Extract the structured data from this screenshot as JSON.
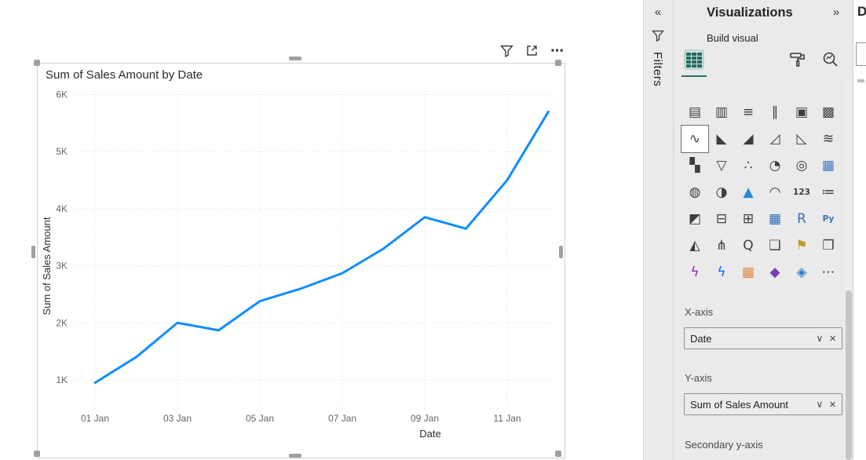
{
  "chart_data": {
    "type": "line",
    "title": "Sum of Sales Amount by Date",
    "xlabel": "Date",
    "ylabel": "Sum of Sales Amount",
    "x": [
      "01 Jan",
      "02 Jan",
      "03 Jan",
      "04 Jan",
      "05 Jan",
      "06 Jan",
      "07 Jan",
      "08 Jan",
      "09 Jan",
      "10 Jan",
      "11 Jan",
      "12 Jan"
    ],
    "values": [
      950,
      1400,
      2000,
      1870,
      2380,
      2600,
      2870,
      3300,
      3850,
      3650,
      4500,
      5700
    ],
    "x_ticks": [
      {
        "index": 0,
        "label": "01 Jan"
      },
      {
        "index": 2,
        "label": "03 Jan"
      },
      {
        "index": 4,
        "label": "05 Jan"
      },
      {
        "index": 6,
        "label": "07 Jan"
      },
      {
        "index": 8,
        "label": "09 Jan"
      },
      {
        "index": 10,
        "label": "11 Jan"
      }
    ],
    "y_ticks": [
      {
        "value": 1000,
        "label": "1K"
      },
      {
        "value": 2000,
        "label": "2K"
      },
      {
        "value": 3000,
        "label": "3K"
      },
      {
        "value": 4000,
        "label": "4K"
      },
      {
        "value": 5000,
        "label": "5K"
      },
      {
        "value": 6000,
        "label": "6K"
      }
    ],
    "y_range": [
      450,
      6060
    ],
    "line_color": "#118DFF",
    "grid": true,
    "legend": false
  },
  "canvas": {
    "visual_header": {
      "more_glyph": "⋯"
    }
  },
  "filters_pane": {
    "title": "Filters",
    "expand_icon": "«"
  },
  "visualizations_pane": {
    "title": "Visualizations",
    "collapse_icon": "»",
    "section_label": "Build visual",
    "tabs": [
      {
        "name": "build-visual",
        "selected": true
      },
      {
        "name": "format-visual",
        "selected": false
      },
      {
        "name": "analytics",
        "selected": false
      }
    ],
    "visual_types": [
      {
        "name": "stacked-bar-chart",
        "glyph": "▤"
      },
      {
        "name": "stacked-column-chart",
        "glyph": "▥"
      },
      {
        "name": "clustered-bar-chart",
        "glyph": "≡"
      },
      {
        "name": "clustered-column-chart",
        "glyph": "∥"
      },
      {
        "name": "100-stacked-bar-chart",
        "glyph": "▣"
      },
      {
        "name": "100-stacked-column-chart",
        "glyph": "▩"
      },
      {
        "name": "line-chart",
        "glyph": "∿",
        "selected": true
      },
      {
        "name": "area-chart",
        "glyph": "◣"
      },
      {
        "name": "stacked-area-chart",
        "glyph": "◢"
      },
      {
        "name": "line-and-stacked-column-chart",
        "glyph": "◿"
      },
      {
        "name": "line-and-clustered-column-chart",
        "glyph": "◺"
      },
      {
        "name": "ribbon-chart",
        "glyph": "≋"
      },
      {
        "name": "waterfall-chart",
        "glyph": "▚"
      },
      {
        "name": "funnel-chart",
        "glyph": "▽"
      },
      {
        "name": "scatter-chart",
        "glyph": "∴"
      },
      {
        "name": "pie-chart",
        "glyph": "◔"
      },
      {
        "name": "donut-chart",
        "glyph": "◎"
      },
      {
        "name": "treemap",
        "glyph": "▦",
        "color": "#3b78c4"
      },
      {
        "name": "map",
        "glyph": "◍"
      },
      {
        "name": "filled-map",
        "glyph": "◑"
      },
      {
        "name": "azure-map",
        "glyph": "▲",
        "color": "#2B88D8"
      },
      {
        "name": "gauge",
        "glyph": "◠"
      },
      {
        "name": "card",
        "glyph": "123"
      },
      {
        "name": "multi-row-card",
        "glyph": "≔"
      },
      {
        "name": "kpi",
        "glyph": "◩"
      },
      {
        "name": "slicer",
        "glyph": "⊟"
      },
      {
        "name": "table",
        "glyph": "⊞"
      },
      {
        "name": "matrix",
        "glyph": "▦",
        "color": "#2B6CB8"
      },
      {
        "name": "r-script-visual",
        "glyph": "R",
        "color": "#3B6FB5"
      },
      {
        "name": "python-visual",
        "glyph": "Py",
        "color": "#3B6FB5"
      },
      {
        "name": "key-influencers",
        "glyph": "◭"
      },
      {
        "name": "decomposition-tree",
        "glyph": "⋔"
      },
      {
        "name": "qa",
        "glyph": "Q"
      },
      {
        "name": "smart-narrative",
        "glyph": "❏"
      },
      {
        "name": "metrics",
        "glyph": "⚑",
        "color": "#C19C2A"
      },
      {
        "name": "paginated-report",
        "glyph": "❐"
      },
      {
        "name": "power-apps",
        "glyph": "ϟ",
        "color": "#8A2DA5"
      },
      {
        "name": "power-automate",
        "glyph": "ϟ",
        "color": "#0066FF"
      },
      {
        "name": "arcgis-map",
        "glyph": "▦",
        "color": "#E8833A"
      },
      {
        "name": "custom-visual-diamond",
        "glyph": "◆",
        "color": "#7A3DB8"
      },
      {
        "name": "custom-visual-stack",
        "glyph": "◈",
        "color": "#2D7DD2"
      },
      {
        "name": "get-more-visuals",
        "glyph": "⋯"
      }
    ],
    "well_icons": {
      "expand": "∨",
      "remove": "×"
    },
    "field_wells": [
      {
        "label": "X-axis",
        "value": "Date"
      },
      {
        "label": "Y-axis",
        "value": "Sum of Sales Amount"
      },
      {
        "label": "Secondary y-axis",
        "value": ""
      }
    ]
  },
  "data_pane": {
    "title_partial": "D"
  }
}
